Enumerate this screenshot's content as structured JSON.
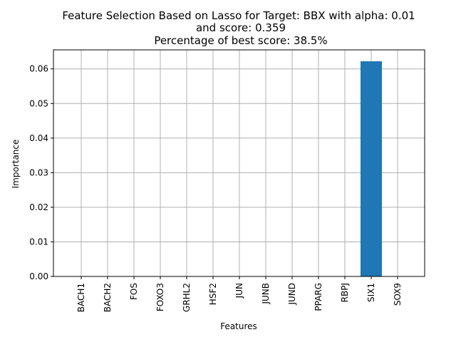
{
  "chart_data": {
    "type": "bar",
    "title_lines": [
      "Feature Selection Based on Lasso for Target: BBX with alpha: 0.01",
      "and score: 0.359",
      "Percentage of best score: 38.5%"
    ],
    "xlabel": "Features",
    "ylabel": "Importance",
    "categories": [
      "BACH1",
      "BACH2",
      "FOS",
      "FOXO3",
      "GRHL2",
      "HSF2",
      "JUN",
      "JUNB",
      "JUND",
      "PPARG",
      "RBPJ",
      "SIX1",
      "SOX9"
    ],
    "values": [
      0,
      0,
      0,
      0,
      0,
      0,
      0,
      0,
      0,
      0,
      0,
      0.0622,
      0
    ],
    "ylim": [
      0,
      0.0655
    ],
    "yticks": [
      "0.00",
      "0.01",
      "0.02",
      "0.03",
      "0.04",
      "0.05",
      "0.06"
    ],
    "ytick_values": [
      0,
      0.01,
      0.02,
      0.03,
      0.04,
      0.05,
      0.06
    ],
    "grid": true,
    "bar_color": "#1f77b4",
    "grid_color": "#b0b0b0"
  }
}
